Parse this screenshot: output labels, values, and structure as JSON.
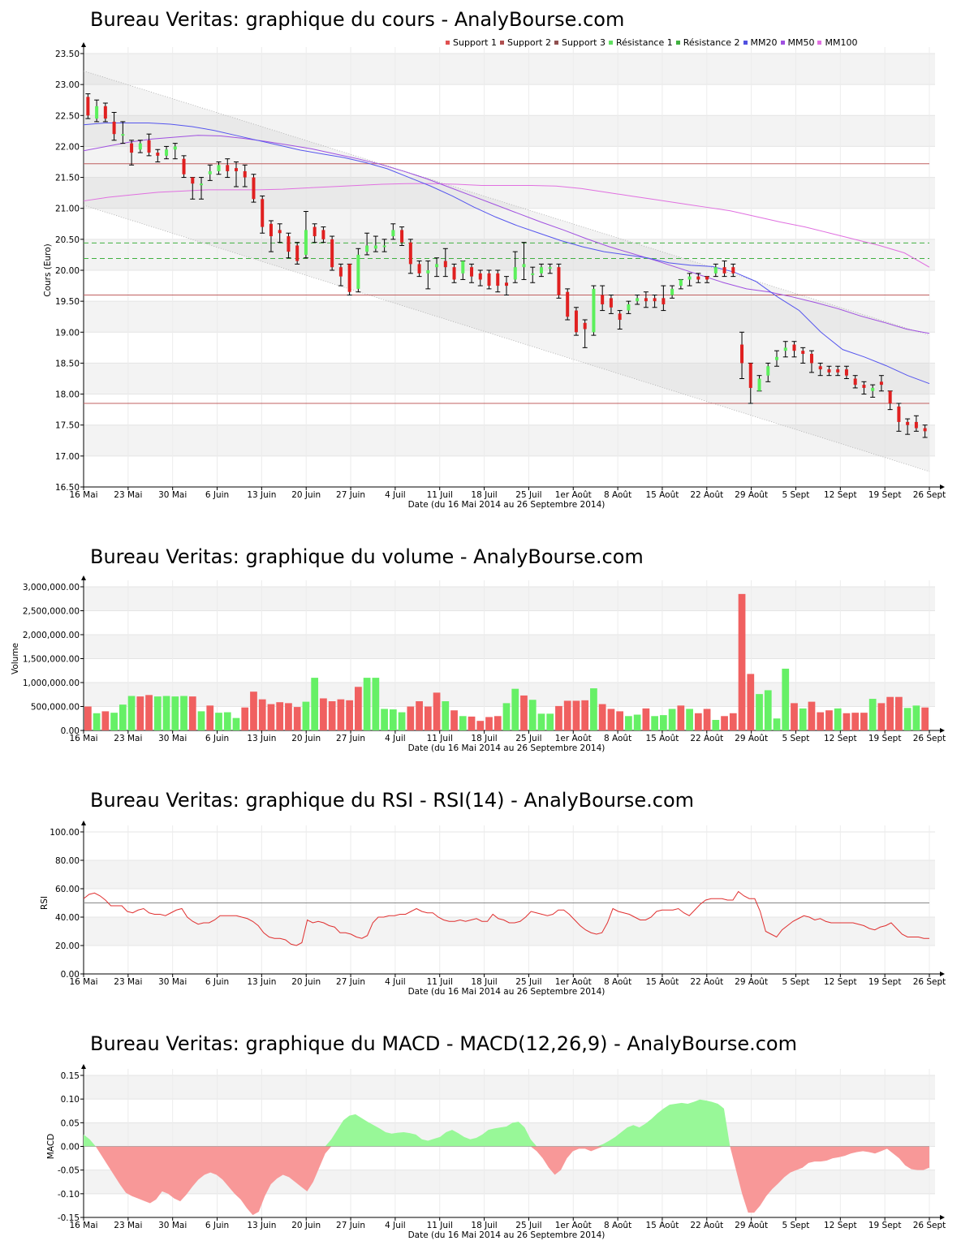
{
  "colors": {
    "up": "#5cf05c",
    "down": "#e02020",
    "support": "#c06060",
    "resistance": "#40b040",
    "mm20": "#5555ee",
    "mm50": "#a050e0",
    "mm100": "#e070e0",
    "rsi": "#e03030",
    "macd_pos": "#98f898",
    "macd_neg": "#f89898",
    "vol_up": "#66f066",
    "vol_down": "#f06060"
  },
  "x_ticks": [
    "16 Mai",
    "23 Mai",
    "30 Mai",
    "6 Juin",
    "13 Juin",
    "20 Juin",
    "27 Juin",
    "4 Juil",
    "11 Juil",
    "18 Juil",
    "25 Juil",
    "1er Août",
    "8 Août",
    "15 Août",
    "22 Août",
    "29 Août",
    "5 Sept",
    "12 Sept",
    "19 Sept",
    "26 Sept"
  ],
  "x_label": "Date (du 16 Mai 2014 au 26 Septembre 2014)",
  "price": {
    "title": "Bureau Veritas: graphique du cours - AnalyBourse.com",
    "ylabel": "Cours (Euro)",
    "yticks": [
      "16.50",
      "17.00",
      "17.50",
      "18.00",
      "18.50",
      "19.00",
      "19.50",
      "20.00",
      "20.50",
      "21.00",
      "21.50",
      "22.00",
      "22.50",
      "23.00",
      "23.50"
    ],
    "legend": [
      {
        "label": "Support 1",
        "color": "#e05050"
      },
      {
        "label": "Support 2",
        "color": "#b05050"
      },
      {
        "label": "Support 3",
        "color": "#905050"
      },
      {
        "label": "Résistance 1",
        "color": "#60e060"
      },
      {
        "label": "Résistance 2",
        "color": "#40b040"
      },
      {
        "label": "MM20",
        "color": "#5050e0"
      },
      {
        "label": "MM50",
        "color": "#a050e0"
      },
      {
        "label": "MM100",
        "color": "#e070e0"
      }
    ],
    "chart_data": {
      "type": "candlestick",
      "ylim": [
        16.5,
        23.5
      ],
      "support_levels": [
        21.72,
        19.6,
        17.85
      ],
      "resistance_levels": [
        20.44,
        20.19
      ],
      "channel_upper": [
        23.22,
        18.95
      ],
      "channel_lower": [
        21.05,
        16.75
      ],
      "candles": [
        [
          22.8,
          22.5,
          22.85,
          22.45
        ],
        [
          22.45,
          22.65,
          22.75,
          22.4
        ],
        [
          22.65,
          22.45,
          22.7,
          22.4
        ],
        [
          22.4,
          22.2,
          22.55,
          22.1
        ],
        [
          22.2,
          22.2,
          22.4,
          22.05
        ],
        [
          22.05,
          21.9,
          22.1,
          21.7
        ],
        [
          21.95,
          22.05,
          22.1,
          21.9
        ],
        [
          22.1,
          21.9,
          22.2,
          21.85
        ],
        [
          21.9,
          21.85,
          21.95,
          21.75
        ],
        [
          21.85,
          21.95,
          22.0,
          21.8
        ],
        [
          21.95,
          22.0,
          22.05,
          21.8
        ],
        [
          21.8,
          21.55,
          21.85,
          21.5
        ],
        [
          21.5,
          21.4,
          21.5,
          21.15
        ],
        [
          21.4,
          21.4,
          21.5,
          21.15
        ],
        [
          21.55,
          21.6,
          21.7,
          21.45
        ],
        [
          21.6,
          21.7,
          21.75,
          21.55
        ],
        [
          21.7,
          21.6,
          21.8,
          21.5
        ],
        [
          21.65,
          21.6,
          21.75,
          21.35
        ],
        [
          21.6,
          21.5,
          21.7,
          21.35
        ],
        [
          21.5,
          21.15,
          21.55,
          21.1
        ],
        [
          21.15,
          20.7,
          21.2,
          20.6
        ],
        [
          20.75,
          20.55,
          20.8,
          20.3
        ],
        [
          20.65,
          20.6,
          20.75,
          20.45
        ],
        [
          20.55,
          20.3,
          20.6,
          20.2
        ],
        [
          20.4,
          20.15,
          20.45,
          20.1
        ],
        [
          20.25,
          20.65,
          20.95,
          20.2
        ],
        [
          20.7,
          20.55,
          20.75,
          20.45
        ],
        [
          20.65,
          20.5,
          20.7,
          20.45
        ],
        [
          20.5,
          20.05,
          20.55,
          20.0
        ],
        [
          20.05,
          19.9,
          20.1,
          19.75
        ],
        [
          20.1,
          19.65,
          20.1,
          19.6
        ],
        [
          19.7,
          20.25,
          20.35,
          19.65
        ],
        [
          20.3,
          20.4,
          20.6,
          20.25
        ],
        [
          20.35,
          20.4,
          20.55,
          20.3
        ],
        [
          20.4,
          20.4,
          20.5,
          20.3
        ],
        [
          20.55,
          20.65,
          20.75,
          20.5
        ],
        [
          20.65,
          20.45,
          20.7,
          20.4
        ],
        [
          20.45,
          20.1,
          20.5,
          19.95
        ],
        [
          20.1,
          19.95,
          20.15,
          19.9
        ],
        [
          19.95,
          20.0,
          20.15,
          19.7
        ],
        [
          20.05,
          20.1,
          20.2,
          19.9
        ],
        [
          20.15,
          20.05,
          20.35,
          19.9
        ],
        [
          20.05,
          19.85,
          20.1,
          19.8
        ],
        [
          19.95,
          20.15,
          20.15,
          19.85
        ],
        [
          20.05,
          19.9,
          20.1,
          19.8
        ],
        [
          19.95,
          19.85,
          20.0,
          19.75
        ],
        [
          19.95,
          19.75,
          20.0,
          19.7
        ],
        [
          19.95,
          19.75,
          20.0,
          19.65
        ],
        [
          19.8,
          19.75,
          19.9,
          19.6
        ],
        [
          19.85,
          20.05,
          20.3,
          19.8
        ],
        [
          20.05,
          20.1,
          20.45,
          19.85
        ],
        [
          19.95,
          19.95,
          20.05,
          19.8
        ],
        [
          19.95,
          20.05,
          20.1,
          19.9
        ],
        [
          20.05,
          20.05,
          20.1,
          19.95
        ],
        [
          20.05,
          19.6,
          20.1,
          19.55
        ],
        [
          19.65,
          19.25,
          19.7,
          19.2
        ],
        [
          19.35,
          19.0,
          19.4,
          18.95
        ],
        [
          19.15,
          19.05,
          19.2,
          18.75
        ],
        [
          19.0,
          19.7,
          19.75,
          18.95
        ],
        [
          19.6,
          19.45,
          19.75,
          19.35
        ],
        [
          19.55,
          19.4,
          19.6,
          19.3
        ],
        [
          19.3,
          19.2,
          19.35,
          19.05
        ],
        [
          19.35,
          19.45,
          19.5,
          19.3
        ],
        [
          19.5,
          19.55,
          19.6,
          19.45
        ],
        [
          19.55,
          19.5,
          19.65,
          19.4
        ],
        [
          19.55,
          19.5,
          19.6,
          19.4
        ],
        [
          19.55,
          19.45,
          19.75,
          19.35
        ],
        [
          19.6,
          19.7,
          19.75,
          19.55
        ],
        [
          19.75,
          19.85,
          19.85,
          19.7
        ],
        [
          19.85,
          19.9,
          19.95,
          19.75
        ],
        [
          19.9,
          19.85,
          19.95,
          19.8
        ],
        [
          19.9,
          19.85,
          19.9,
          19.8
        ],
        [
          19.95,
          20.05,
          20.1,
          19.9
        ],
        [
          20.05,
          19.95,
          20.15,
          19.9
        ],
        [
          20.05,
          19.95,
          20.1,
          19.9
        ],
        [
          18.8,
          18.5,
          19.0,
          18.25
        ],
        [
          18.5,
          18.1,
          18.5,
          17.85
        ],
        [
          18.05,
          18.25,
          18.3,
          18.05
        ],
        [
          18.3,
          18.45,
          18.5,
          18.2
        ],
        [
          18.55,
          18.6,
          18.7,
          18.45
        ],
        [
          18.7,
          18.75,
          18.85,
          18.6
        ],
        [
          18.8,
          18.7,
          18.85,
          18.6
        ],
        [
          18.7,
          18.65,
          18.75,
          18.5
        ],
        [
          18.65,
          18.5,
          18.7,
          18.35
        ],
        [
          18.45,
          18.4,
          18.5,
          18.3
        ],
        [
          18.4,
          18.35,
          18.45,
          18.3
        ],
        [
          18.4,
          18.35,
          18.45,
          18.3
        ],
        [
          18.4,
          18.3,
          18.45,
          18.25
        ],
        [
          18.25,
          18.15,
          18.3,
          18.1
        ],
        [
          18.15,
          18.1,
          18.2,
          18.0
        ],
        [
          18.05,
          18.1,
          18.15,
          17.95
        ],
        [
          18.2,
          18.15,
          18.3,
          18.05
        ],
        [
          18.05,
          17.85,
          18.05,
          17.75
        ],
        [
          17.8,
          17.55,
          17.85,
          17.4
        ],
        [
          17.55,
          17.5,
          17.6,
          17.35
        ],
        [
          17.55,
          17.45,
          17.65,
          17.4
        ],
        [
          17.45,
          17.4,
          17.5,
          17.3
        ]
      ],
      "mm20": [
        22.35,
        22.38,
        22.38,
        22.38,
        22.36,
        22.32,
        22.26,
        22.18,
        22.1,
        22.02,
        21.94,
        21.88,
        21.82,
        21.74,
        21.64,
        21.5,
        21.36,
        21.2,
        21.02,
        20.86,
        20.72,
        20.6,
        20.48,
        20.38,
        20.3,
        20.25,
        20.2,
        20.12,
        20.08,
        20.06,
        19.97,
        19.82,
        19.57,
        19.35,
        19.0,
        18.72,
        18.6,
        18.46,
        18.3,
        18.17
      ],
      "mm50": [
        21.93,
        22.0,
        22.07,
        22.12,
        22.15,
        22.18,
        22.17,
        22.13,
        22.08,
        22.02,
        21.96,
        21.88,
        21.8,
        21.71,
        21.6,
        21.48,
        21.34,
        21.2,
        21.06,
        20.92,
        20.78,
        20.65,
        20.51,
        20.38,
        20.27,
        20.16,
        20.04,
        19.92,
        19.8,
        19.7,
        19.65,
        19.57,
        19.48,
        19.38,
        19.26,
        19.16,
        19.05,
        18.98
      ],
      "mm100": [
        21.12,
        21.18,
        21.22,
        21.26,
        21.28,
        21.3,
        21.3,
        21.3,
        21.31,
        21.33,
        21.35,
        21.37,
        21.39,
        21.4,
        21.4,
        21.39,
        21.37,
        21.37,
        21.37,
        21.36,
        21.32,
        21.26,
        21.2,
        21.14,
        21.08,
        21.02,
        20.96,
        20.87,
        20.78,
        20.7,
        20.6,
        20.5,
        20.4,
        20.28,
        20.05
      ]
    }
  },
  "volume": {
    "title": "Bureau Veritas: graphique du volume - AnalyBourse.com",
    "ylabel": "Volume",
    "yticks": [
      "0.00",
      "500,000.00",
      "1,000,000.00",
      "1,500,000.00",
      "2,000,000.00",
      "2,500,000.00",
      "3,000,000.00"
    ],
    "chart_data": {
      "type": "bar",
      "ylim": [
        0,
        3000000
      ],
      "values": [
        500000,
        360000,
        400000,
        370000,
        540000,
        720000,
        710000,
        740000,
        710000,
        720000,
        710000,
        720000,
        710000,
        400000,
        520000,
        370000,
        380000,
        260000,
        480000,
        810000,
        650000,
        550000,
        590000,
        570000,
        490000,
        600000,
        1100000,
        670000,
        610000,
        650000,
        630000,
        910000,
        1100000,
        1100000,
        450000,
        440000,
        380000,
        500000,
        610000,
        500000,
        790000,
        610000,
        420000,
        300000,
        290000,
        200000,
        280000,
        300000,
        570000,
        870000,
        730000,
        640000,
        350000,
        350000,
        510000,
        620000,
        620000,
        630000,
        880000,
        550000,
        450000,
        400000,
        300000,
        330000,
        460000,
        300000,
        320000,
        450000,
        520000,
        450000,
        360000,
        450000,
        220000,
        300000,
        360000,
        2850000,
        1180000,
        760000,
        840000,
        250000,
        1290000,
        570000,
        460000,
        600000,
        380000,
        420000,
        460000,
        360000,
        370000,
        370000,
        660000,
        570000,
        700000,
        700000,
        470000,
        520000,
        480000
      ],
      "up": [
        0,
        1,
        0,
        1,
        1,
        1,
        0,
        0,
        1,
        1,
        1,
        1,
        0,
        1,
        0,
        1,
        1,
        1,
        0,
        0,
        0,
        0,
        0,
        0,
        0,
        1,
        1,
        0,
        0,
        0,
        0,
        0,
        1,
        1,
        1,
        1,
        1,
        0,
        0,
        0,
        0,
        1,
        0,
        1,
        0,
        0,
        0,
        0,
        1,
        1,
        0,
        1,
        1,
        1,
        0,
        0,
        0,
        0,
        1,
        0,
        0,
        0,
        1,
        1,
        0,
        1,
        1,
        1,
        0,
        1,
        0,
        0,
        1,
        0,
        0,
        0,
        0,
        1,
        1,
        1,
        1,
        0,
        1,
        0,
        0,
        0,
        1,
        0,
        0,
        0,
        1,
        0,
        0,
        0,
        1,
        1,
        0
      ]
    }
  },
  "rsi": {
    "title": "Bureau Veritas: graphique du RSI - RSI(14) - AnalyBourse.com",
    "ylabel": "RSI",
    "yticks": [
      "0.00",
      "20.00",
      "40.00",
      "60.00",
      "80.00",
      "100.00"
    ],
    "chart_data": {
      "type": "line",
      "ylim": [
        0,
        100
      ],
      "reference_line": 50,
      "values": [
        53,
        56,
        57,
        55,
        52,
        48,
        48,
        48,
        44,
        43,
        45,
        46,
        43,
        42,
        42,
        41,
        43,
        45,
        46,
        40,
        37,
        35,
        36,
        36,
        38,
        41,
        41,
        41,
        41,
        40,
        39,
        37,
        34,
        29,
        26,
        25,
        25,
        24,
        21,
        20,
        22,
        38,
        36,
        37,
        36,
        34,
        33,
        29,
        29,
        28,
        26,
        25,
        27,
        36,
        40,
        40,
        41,
        41,
        42,
        42,
        44,
        46,
        44,
        43,
        43,
        40,
        38,
        37,
        37,
        38,
        37,
        38,
        39,
        37,
        37,
        42,
        39,
        38,
        36,
        36,
        37,
        40,
        44,
        43,
        42,
        41,
        42,
        45,
        45,
        42,
        38,
        34,
        31,
        29,
        28,
        29,
        36,
        46,
        44,
        43,
        42,
        40,
        38,
        38,
        40,
        44,
        45,
        45,
        45,
        46,
        43,
        41,
        45,
        49,
        52,
        53,
        53,
        53,
        52,
        52,
        58,
        55,
        53,
        53,
        44,
        30,
        28,
        26,
        31,
        34,
        37,
        39,
        41,
        40,
        38,
        39,
        37,
        36,
        36,
        36,
        36,
        36,
        35,
        34,
        32,
        31,
        33,
        34,
        36,
        32,
        28,
        26,
        26,
        26,
        25,
        25
      ]
    }
  },
  "macd": {
    "title": "Bureau Veritas: graphique du MACD - MACD(12,26,9) - AnalyBourse.com",
    "ylabel": "MACD",
    "yticks": [
      "-0.15",
      "-0.10",
      "-0.05",
      "0.00",
      "0.05",
      "0.10",
      "0.15"
    ],
    "chart_data": {
      "type": "area",
      "ylim": [
        -0.15,
        0.15
      ],
      "values": [
        0.025,
        0.015,
        0.0,
        -0.02,
        -0.04,
        -0.06,
        -0.08,
        -0.098,
        -0.105,
        -0.11,
        -0.115,
        -0.12,
        -0.112,
        -0.095,
        -0.1,
        -0.11,
        -0.116,
        -0.102,
        -0.085,
        -0.07,
        -0.06,
        -0.055,
        -0.06,
        -0.07,
        -0.085,
        -0.1,
        -0.112,
        -0.13,
        -0.145,
        -0.138,
        -0.105,
        -0.08,
        -0.068,
        -0.06,
        -0.065,
        -0.075,
        -0.085,
        -0.095,
        -0.075,
        -0.045,
        -0.015,
        0.015,
        0.035,
        0.055,
        0.065,
        0.068,
        0.06,
        0.052,
        0.045,
        0.038,
        0.03,
        0.027,
        0.029,
        0.03,
        0.028,
        0.025,
        0.015,
        0.012,
        0.016,
        0.02,
        0.03,
        0.035,
        0.028,
        0.02,
        0.015,
        0.018,
        0.025,
        0.035,
        0.038,
        0.04,
        0.042,
        0.05,
        0.052,
        0.04,
        0.015,
        -0.01,
        -0.025,
        -0.045,
        -0.06,
        -0.05,
        -0.025,
        -0.01,
        -0.005,
        -0.005,
        -0.01,
        -0.005,
        0.005,
        0.012,
        0.02,
        0.03,
        0.04,
        0.045,
        0.04,
        0.048,
        0.058,
        0.07,
        0.08,
        0.088,
        0.09,
        0.092,
        0.09,
        0.094,
        0.099,
        0.097,
        0.094,
        0.09,
        0.08,
        -0.0,
        -0.05,
        -0.1,
        -0.14,
        -0.14,
        -0.125,
        -0.105,
        -0.09,
        -0.078,
        -0.065,
        -0.055,
        -0.05,
        -0.045,
        -0.035,
        -0.032,
        -0.032,
        -0.03,
        -0.025,
        -0.023,
        -0.02,
        -0.015,
        -0.012,
        -0.01,
        -0.012,
        -0.015,
        -0.01,
        -0.005,
        -0.015,
        -0.025,
        -0.04,
        -0.048,
        -0.05,
        -0.05,
        -0.045
      ]
    }
  }
}
